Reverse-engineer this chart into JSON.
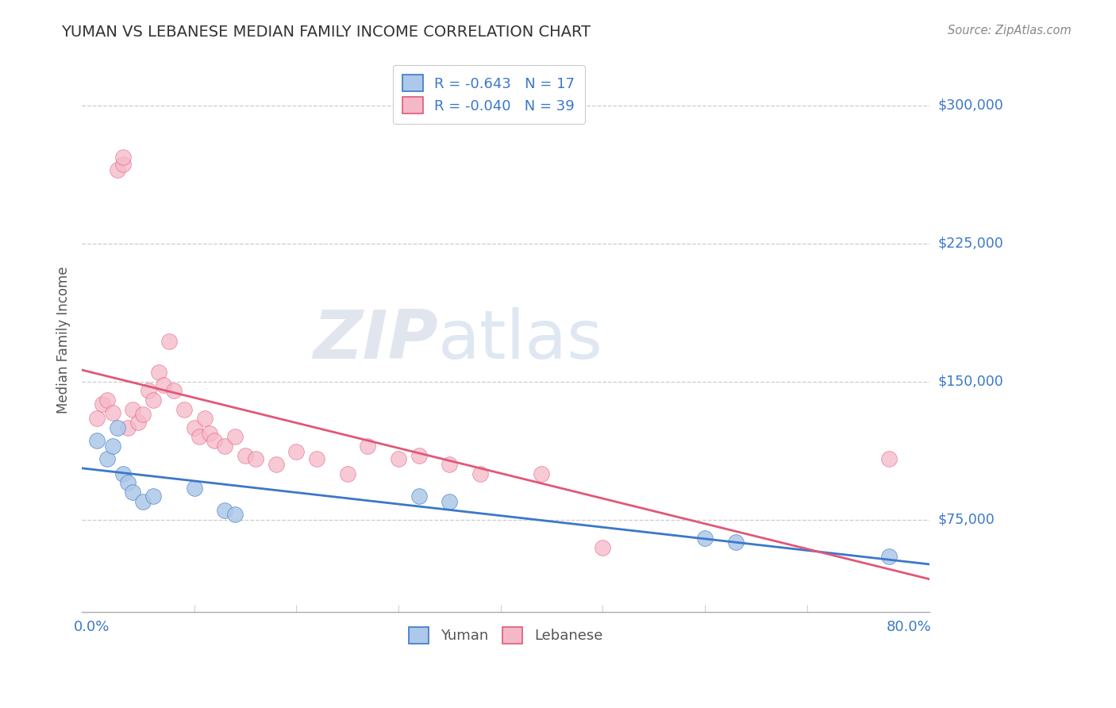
{
  "title": "YUMAN VS LEBANESE MEDIAN FAMILY INCOME CORRELATION CHART",
  "source": "Source: ZipAtlas.com",
  "ylabel": "Median Family Income",
  "ylabel_ticks": [
    "$75,000",
    "$150,000",
    "$225,000",
    "$300,000"
  ],
  "ylabel_vals": [
    75000,
    150000,
    225000,
    300000
  ],
  "ymin": 25000,
  "ymax": 320000,
  "xmin": -0.01,
  "xmax": 0.82,
  "legend1_text": "R = -0.643   N = 17",
  "legend2_text": "R = -0.040   N = 39",
  "legend_labels": [
    "Yuman",
    "Lebanese"
  ],
  "scatter_color_blue": "#adc8e8",
  "scatter_color_pink": "#f5b8c8",
  "line_color_blue": "#3a78c9",
  "line_color_pink": "#e05878",
  "grid_color": "#cccccc",
  "watermark_zip": "ZIP",
  "watermark_atlas": "atlas",
  "blue_points_x": [
    0.005,
    0.015,
    0.02,
    0.025,
    0.03,
    0.035,
    0.04,
    0.05,
    0.06,
    0.1,
    0.13,
    0.14,
    0.32,
    0.35,
    0.6,
    0.63,
    0.78
  ],
  "blue_points_y": [
    118000,
    108000,
    115000,
    125000,
    100000,
    95000,
    90000,
    85000,
    88000,
    92000,
    80000,
    78000,
    88000,
    85000,
    65000,
    63000,
    55000
  ],
  "pink_points_x": [
    0.005,
    0.01,
    0.015,
    0.02,
    0.025,
    0.03,
    0.03,
    0.035,
    0.04,
    0.045,
    0.05,
    0.055,
    0.06,
    0.065,
    0.07,
    0.075,
    0.08,
    0.09,
    0.1,
    0.105,
    0.11,
    0.115,
    0.12,
    0.13,
    0.14,
    0.15,
    0.16,
    0.18,
    0.2,
    0.22,
    0.25,
    0.27,
    0.3,
    0.32,
    0.35,
    0.38,
    0.44,
    0.5,
    0.78
  ],
  "pink_points_y": [
    130000,
    138000,
    140000,
    133000,
    265000,
    268000,
    272000,
    125000,
    135000,
    128000,
    132000,
    145000,
    140000,
    155000,
    148000,
    172000,
    145000,
    135000,
    125000,
    120000,
    130000,
    122000,
    118000,
    115000,
    120000,
    110000,
    108000,
    105000,
    112000,
    108000,
    100000,
    115000,
    108000,
    110000,
    105000,
    100000,
    100000,
    60000,
    108000
  ],
  "background_color": "#ffffff",
  "title_color": "#333333",
  "axis_label_color": "#555555",
  "tick_color_blue": "#3a78c9",
  "tick_color_gray": "#888888"
}
